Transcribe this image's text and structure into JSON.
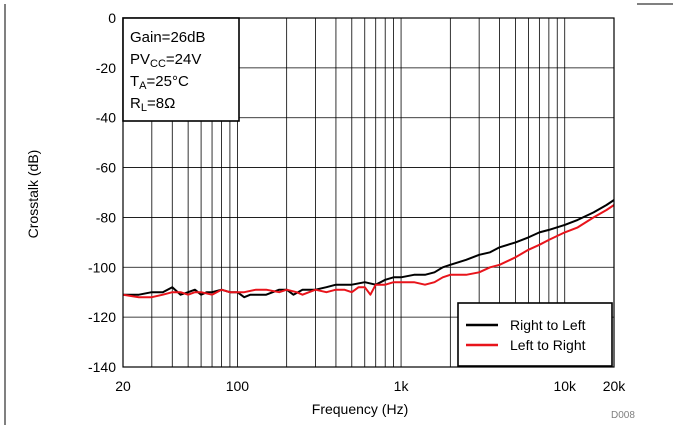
{
  "chart_data": {
    "type": "line",
    "xlabel": "Frequency (Hz)",
    "ylabel": "Crosstalk (dB)",
    "x_scale": "log",
    "xlim": [
      20,
      20000
    ],
    "ylim": [
      -140,
      0
    ],
    "grid": true,
    "x_ticks": [
      20,
      100,
      1000,
      10000,
      20000
    ],
    "x_tick_labels": [
      "20",
      "100",
      "1k",
      "10k",
      "20k"
    ],
    "y_ticks": [
      0,
      -20,
      -40,
      -60,
      -80,
      -100,
      -120,
      -140
    ],
    "y_tick_labels": [
      "0",
      "-20",
      "-40",
      "-60",
      "-80",
      "-100",
      "-120",
      "-140"
    ],
    "annotations": {
      "gain": "Gain=26dB",
      "pvcc_main": "PV",
      "pvcc_sub": "CC",
      "pvcc_value": "=24V",
      "ta_main": "T",
      "ta_sub": "A",
      "ta_value": "=25°C",
      "rl_main": "R",
      "rl_sub": "L",
      "rl_value": "=8Ω"
    },
    "figure_code": "D008",
    "legend_position": "bottom-right",
    "series": [
      {
        "name": "Right to Left",
        "color": "#000000",
        "points": [
          [
            20,
            -111
          ],
          [
            25,
            -111
          ],
          [
            30,
            -110
          ],
          [
            35,
            -110
          ],
          [
            40,
            -108
          ],
          [
            45,
            -111
          ],
          [
            50,
            -110
          ],
          [
            55,
            -109
          ],
          [
            60,
            -111
          ],
          [
            65,
            -110
          ],
          [
            70,
            -110
          ],
          [
            80,
            -109
          ],
          [
            90,
            -110
          ],
          [
            100,
            -110
          ],
          [
            110,
            -112
          ],
          [
            120,
            -111
          ],
          [
            150,
            -111
          ],
          [
            180,
            -109
          ],
          [
            200,
            -109
          ],
          [
            220,
            -111
          ],
          [
            250,
            -109
          ],
          [
            300,
            -109
          ],
          [
            350,
            -108
          ],
          [
            400,
            -107
          ],
          [
            500,
            -107
          ],
          [
            600,
            -106
          ],
          [
            700,
            -107
          ],
          [
            800,
            -105
          ],
          [
            900,
            -104
          ],
          [
            1000,
            -104
          ],
          [
            1200,
            -103
          ],
          [
            1400,
            -103
          ],
          [
            1600,
            -102
          ],
          [
            1800,
            -100
          ],
          [
            2000,
            -99
          ],
          [
            2500,
            -97
          ],
          [
            3000,
            -95
          ],
          [
            3500,
            -94
          ],
          [
            4000,
            -92
          ],
          [
            5000,
            -90
          ],
          [
            6000,
            -88
          ],
          [
            7000,
            -86
          ],
          [
            8000,
            -85
          ],
          [
            10000,
            -83
          ],
          [
            12000,
            -81
          ],
          [
            15000,
            -78
          ],
          [
            18000,
            -75
          ],
          [
            20000,
            -73
          ]
        ]
      },
      {
        "name": "Left to Right",
        "color": "#e8141b",
        "points": [
          [
            20,
            -111
          ],
          [
            25,
            -112
          ],
          [
            30,
            -112
          ],
          [
            35,
            -111
          ],
          [
            40,
            -110
          ],
          [
            45,
            -110
          ],
          [
            50,
            -111
          ],
          [
            55,
            -110
          ],
          [
            60,
            -110
          ],
          [
            70,
            -111
          ],
          [
            80,
            -109
          ],
          [
            90,
            -110
          ],
          [
            100,
            -110
          ],
          [
            110,
            -110
          ],
          [
            130,
            -109
          ],
          [
            150,
            -109
          ],
          [
            180,
            -110
          ],
          [
            200,
            -109
          ],
          [
            230,
            -110
          ],
          [
            250,
            -111
          ],
          [
            300,
            -109
          ],
          [
            350,
            -110
          ],
          [
            400,
            -109
          ],
          [
            450,
            -109
          ],
          [
            500,
            -110
          ],
          [
            550,
            -108
          ],
          [
            600,
            -108
          ],
          [
            650,
            -111
          ],
          [
            700,
            -107
          ],
          [
            800,
            -107
          ],
          [
            900,
            -106
          ],
          [
            1000,
            -106
          ],
          [
            1200,
            -106
          ],
          [
            1400,
            -107
          ],
          [
            1600,
            -106
          ],
          [
            1800,
            -104
          ],
          [
            2000,
            -103
          ],
          [
            2500,
            -103
          ],
          [
            3000,
            -102
          ],
          [
            3500,
            -100
          ],
          [
            4000,
            -99
          ],
          [
            5000,
            -96
          ],
          [
            6000,
            -93
          ],
          [
            7000,
            -91
          ],
          [
            8000,
            -89
          ],
          [
            10000,
            -86
          ],
          [
            12000,
            -84
          ],
          [
            15000,
            -80
          ],
          [
            18000,
            -77
          ],
          [
            20000,
            -75
          ]
        ]
      }
    ]
  }
}
